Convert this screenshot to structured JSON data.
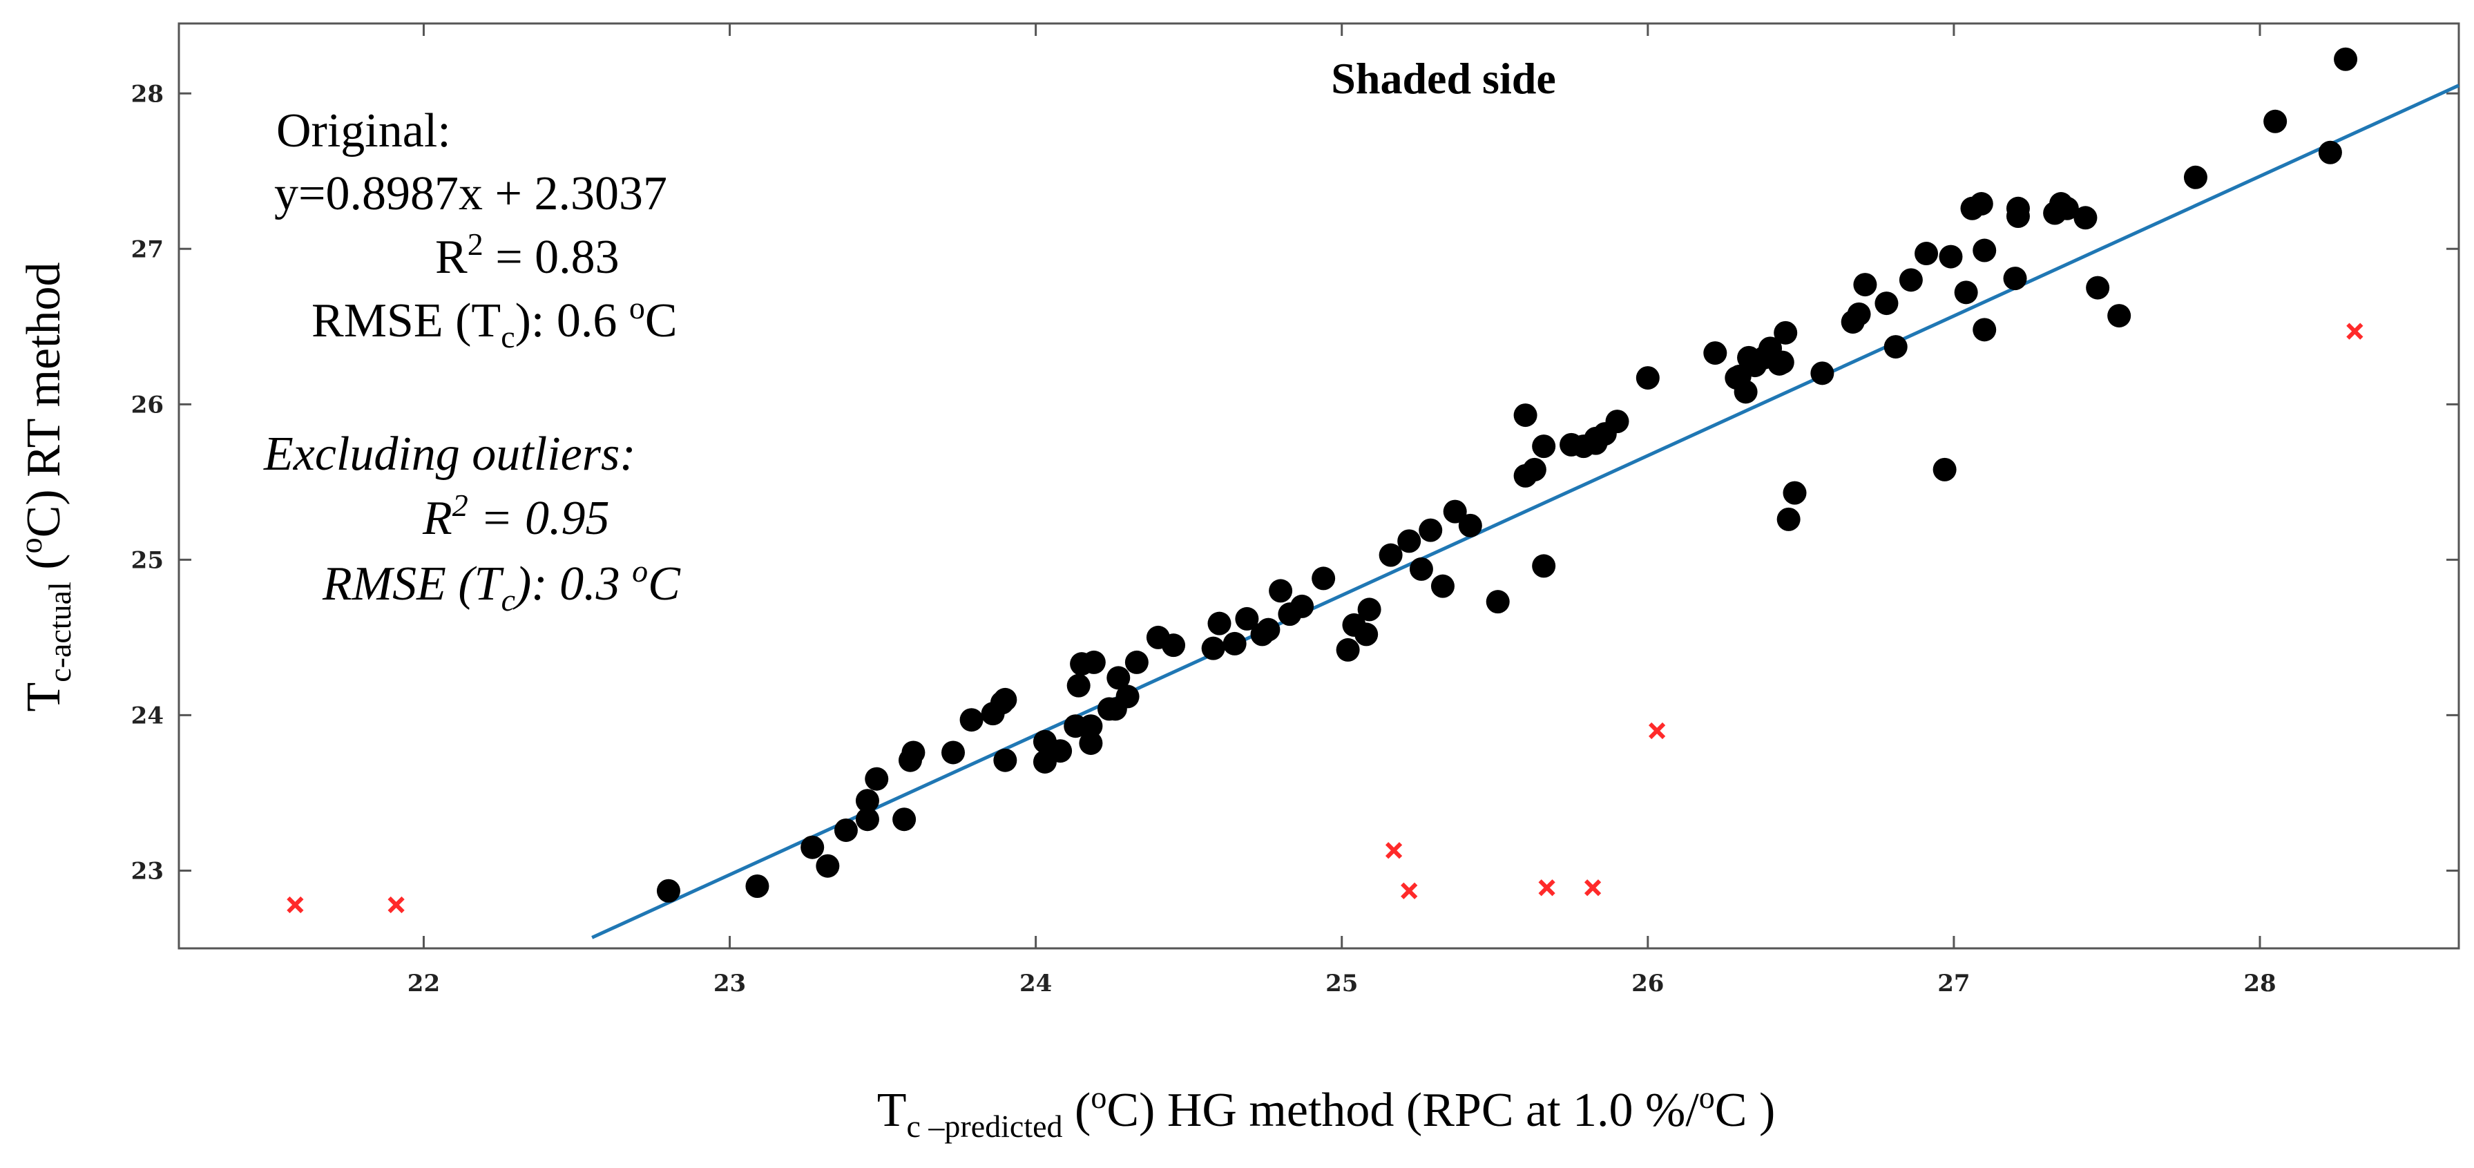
{
  "chart_data": {
    "type": "scatter",
    "title": "Shaded side",
    "xlim": [
      21.2,
      28.65
    ],
    "ylim": [
      22.5,
      28.45
    ],
    "x_ticks": [
      "22",
      "23",
      "24",
      "25",
      "26",
      "27",
      "28"
    ],
    "y_ticks": [
      "23",
      "24",
      "25",
      "26",
      "27",
      "28"
    ],
    "grid": false,
    "xlabel": {
      "t": "T",
      "sub": "c –predicted",
      "lp": " (",
      "sup": "o",
      "rest": "C)  HG method (RPC at 1.0 %/",
      "sup2": "o",
      "end": "C )"
    },
    "ylabel": {
      "t": "T",
      "sub": "c-actual",
      "lp": " (",
      "sup": "o",
      "rest": "C)  RT method"
    },
    "annotations": {
      "original_label": "Original:",
      "equation": "y=0.8987x + 2.3037",
      "r2_prefix": "R",
      "r2_sup": "2",
      "r2_value": " = 0.83",
      "rmse_prefix": "RMSE (T",
      "rmse_sub": "c",
      "rmse_mid": "): 0.6 ",
      "rmse_sup": "o",
      "rmse_end": "C",
      "excl_label": "Excluding outliers:",
      "excl_r2_prefix": "R",
      "excl_r2_sup": "2",
      "excl_r2_value": " = 0.95",
      "excl_rmse_prefix": "RMSE (T",
      "excl_rmse_sub": "c",
      "excl_rmse_mid": "): 0.3 ",
      "excl_rmse_sup": "o",
      "excl_rmse_end": "C"
    },
    "regression_line": {
      "slope": 0.8987,
      "intercept": 2.3037,
      "x_range": [
        22.55,
        28.65
      ],
      "color": "#1f77b4"
    },
    "colors": {
      "points": "#000000",
      "outliers": "#ff2a2a",
      "line": "#1f77b4",
      "frame": "#555555"
    },
    "series": [
      {
        "marker": "circle",
        "points": [
          [
            22.8,
            22.87
          ],
          [
            23.09,
            22.9
          ],
          [
            23.27,
            23.15
          ],
          [
            23.32,
            23.03
          ],
          [
            23.38,
            23.26
          ],
          [
            23.45,
            23.33
          ],
          [
            23.45,
            23.45
          ],
          [
            23.48,
            23.59
          ],
          [
            23.57,
            23.33
          ],
          [
            23.59,
            23.71
          ],
          [
            23.6,
            23.76
          ],
          [
            23.73,
            23.76
          ],
          [
            23.79,
            23.97
          ],
          [
            23.86,
            24.01
          ],
          [
            23.89,
            24.08
          ],
          [
            23.9,
            24.1
          ],
          [
            23.9,
            23.71
          ],
          [
            24.03,
            23.7
          ],
          [
            24.03,
            23.83
          ],
          [
            24.08,
            23.77
          ],
          [
            24.13,
            23.93
          ],
          [
            24.14,
            24.19
          ],
          [
            24.15,
            24.33
          ],
          [
            24.19,
            24.34
          ],
          [
            24.18,
            23.82
          ],
          [
            24.18,
            23.93
          ],
          [
            24.24,
            24.04
          ],
          [
            24.26,
            24.04
          ],
          [
            24.27,
            24.24
          ],
          [
            24.3,
            24.12
          ],
          [
            24.33,
            24.34
          ],
          [
            24.4,
            24.5
          ],
          [
            24.45,
            24.45
          ],
          [
            24.58,
            24.43
          ],
          [
            24.6,
            24.59
          ],
          [
            24.65,
            24.46
          ],
          [
            24.69,
            24.62
          ],
          [
            24.74,
            24.52
          ],
          [
            24.76,
            24.55
          ],
          [
            24.8,
            24.8
          ],
          [
            24.83,
            24.65
          ],
          [
            24.87,
            24.7
          ],
          [
            24.94,
            24.88
          ],
          [
            25.02,
            24.42
          ],
          [
            25.04,
            24.58
          ],
          [
            25.08,
            24.52
          ],
          [
            25.09,
            24.68
          ],
          [
            25.16,
            25.03
          ],
          [
            25.22,
            25.12
          ],
          [
            25.26,
            24.94
          ],
          [
            25.29,
            25.19
          ],
          [
            25.33,
            24.83
          ],
          [
            25.37,
            25.31
          ],
          [
            25.42,
            25.22
          ],
          [
            25.51,
            24.73
          ],
          [
            25.6,
            25.54
          ],
          [
            25.6,
            25.93
          ],
          [
            25.63,
            25.58
          ],
          [
            25.66,
            25.73
          ],
          [
            25.66,
            24.96
          ],
          [
            25.75,
            25.74
          ],
          [
            25.79,
            25.73
          ],
          [
            25.83,
            25.75
          ],
          [
            25.83,
            25.78
          ],
          [
            25.86,
            25.81
          ],
          [
            25.9,
            25.89
          ],
          [
            26.0,
            26.17
          ],
          [
            26.22,
            26.33
          ],
          [
            26.29,
            26.17
          ],
          [
            26.3,
            26.18
          ],
          [
            26.32,
            26.08
          ],
          [
            26.33,
            26.3
          ],
          [
            26.35,
            26.25
          ],
          [
            26.38,
            26.3
          ],
          [
            26.4,
            26.36
          ],
          [
            26.43,
            26.26
          ],
          [
            26.44,
            26.27
          ],
          [
            26.45,
            26.46
          ],
          [
            26.46,
            25.26
          ],
          [
            26.48,
            25.43
          ],
          [
            26.57,
            26.2
          ],
          [
            26.67,
            26.53
          ],
          [
            26.69,
            26.58
          ],
          [
            26.71,
            26.77
          ],
          [
            26.78,
            26.65
          ],
          [
            26.81,
            26.37
          ],
          [
            26.86,
            26.8
          ],
          [
            26.91,
            26.97
          ],
          [
            26.97,
            25.58
          ],
          [
            26.99,
            26.95
          ],
          [
            27.04,
            26.72
          ],
          [
            27.06,
            27.26
          ],
          [
            27.09,
            27.29
          ],
          [
            27.1,
            26.99
          ],
          [
            27.1,
            26.48
          ],
          [
            27.2,
            26.81
          ],
          [
            27.21,
            27.26
          ],
          [
            27.21,
            27.21
          ],
          [
            27.33,
            27.23
          ],
          [
            27.35,
            27.29
          ],
          [
            27.37,
            27.26
          ],
          [
            27.43,
            27.2
          ],
          [
            27.47,
            26.75
          ],
          [
            27.54,
            26.57
          ],
          [
            27.79,
            27.46
          ],
          [
            28.05,
            27.82
          ],
          [
            28.23,
            27.62
          ],
          [
            28.28,
            28.22
          ]
        ]
      },
      {
        "marker": "x",
        "points": [
          [
            21.58,
            22.78
          ],
          [
            21.91,
            22.78
          ],
          [
            25.17,
            23.13
          ],
          [
            25.22,
            22.87
          ],
          [
            25.67,
            22.89
          ],
          [
            25.82,
            22.89
          ],
          [
            26.03,
            23.9
          ],
          [
            28.31,
            26.47
          ]
        ]
      }
    ]
  }
}
